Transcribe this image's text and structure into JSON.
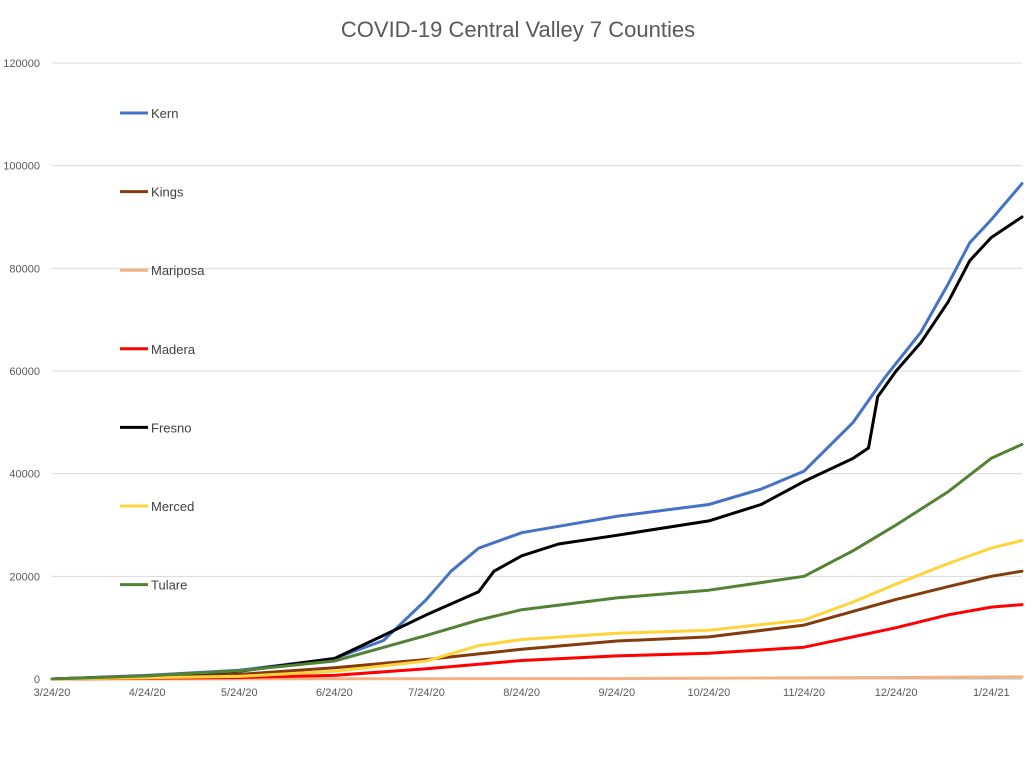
{
  "chart_data": {
    "type": "line",
    "title": "COVID-19 Central Valley 7 Counties",
    "xlabel": "",
    "ylabel": "",
    "ylim": [
      0,
      120000
    ],
    "y_ticks": [
      0,
      20000,
      40000,
      60000,
      80000,
      100000,
      120000
    ],
    "x_ticks": [
      "3/24/20",
      "4/24/20",
      "5/24/20",
      "6/24/20",
      "7/24/20",
      "8/24/20",
      "9/24/20",
      "10/24/20",
      "11/24/20",
      "12/24/20",
      "1/24/21"
    ],
    "x_range": [
      "2020-03-24",
      "2021-02-03"
    ],
    "grid": true,
    "legend_position": "left, inside plot",
    "series": [
      {
        "name": "Kern",
        "color": "#4472C4",
        "points": [
          [
            "2020-03-24",
            0
          ],
          [
            "2020-04-24",
            700
          ],
          [
            "2020-05-24",
            1700
          ],
          [
            "2020-06-24",
            4000
          ],
          [
            "2020-07-10",
            7500
          ],
          [
            "2020-07-24",
            15500
          ],
          [
            "2020-08-01",
            21000
          ],
          [
            "2020-08-10",
            25500
          ],
          [
            "2020-08-24",
            28500
          ],
          [
            "2020-09-24",
            31700
          ],
          [
            "2020-10-24",
            34000
          ],
          [
            "2020-11-10",
            37000
          ],
          [
            "2020-11-24",
            40500
          ],
          [
            "2020-12-10",
            50000
          ],
          [
            "2020-12-20",
            58500
          ],
          [
            "2020-12-24",
            61500
          ],
          [
            "2021-01-01",
            67500
          ],
          [
            "2021-01-10",
            77000
          ],
          [
            "2021-01-17",
            85000
          ],
          [
            "2021-01-24",
            89500
          ],
          [
            "2021-02-03",
            96500
          ]
        ]
      },
      {
        "name": "Kings",
        "color": "#843C0C",
        "points": [
          [
            "2020-03-24",
            0
          ],
          [
            "2020-04-24",
            350
          ],
          [
            "2020-05-24",
            900
          ],
          [
            "2020-06-24",
            2200
          ],
          [
            "2020-07-24",
            3800
          ],
          [
            "2020-08-24",
            5800
          ],
          [
            "2020-09-24",
            7400
          ],
          [
            "2020-10-24",
            8200
          ],
          [
            "2020-11-24",
            10500
          ],
          [
            "2020-12-24",
            15500
          ],
          [
            "2021-01-10",
            18000
          ],
          [
            "2021-01-24",
            20000
          ],
          [
            "2021-02-03",
            21000
          ]
        ]
      },
      {
        "name": "Mariposa",
        "color": "#F4B183",
        "points": [
          [
            "2020-03-24",
            0
          ],
          [
            "2020-06-24",
            40
          ],
          [
            "2020-09-24",
            80
          ],
          [
            "2020-12-24",
            300
          ],
          [
            "2021-02-03",
            400
          ]
        ]
      },
      {
        "name": "Madera",
        "color": "#FF0000",
        "points": [
          [
            "2020-03-24",
            0
          ],
          [
            "2020-05-24",
            300
          ],
          [
            "2020-06-24",
            700
          ],
          [
            "2020-07-24",
            2000
          ],
          [
            "2020-08-24",
            3600
          ],
          [
            "2020-09-24",
            4500
          ],
          [
            "2020-10-24",
            5000
          ],
          [
            "2020-11-24",
            6200
          ],
          [
            "2020-12-24",
            10000
          ],
          [
            "2021-01-10",
            12500
          ],
          [
            "2021-01-24",
            14000
          ],
          [
            "2021-02-03",
            14500
          ]
        ]
      },
      {
        "name": "Fresno",
        "color": "#000000",
        "points": [
          [
            "2020-03-24",
            0
          ],
          [
            "2020-04-24",
            600
          ],
          [
            "2020-05-24",
            1500
          ],
          [
            "2020-06-24",
            4000
          ],
          [
            "2020-07-10",
            8500
          ],
          [
            "2020-07-24",
            12500
          ],
          [
            "2020-08-10",
            17000
          ],
          [
            "2020-08-15",
            21000
          ],
          [
            "2020-08-24",
            24000
          ],
          [
            "2020-09-05",
            26300
          ],
          [
            "2020-09-24",
            28000
          ],
          [
            "2020-10-24",
            30800
          ],
          [
            "2020-11-10",
            34000
          ],
          [
            "2020-11-24",
            38500
          ],
          [
            "2020-12-10",
            43000
          ],
          [
            "2020-12-15",
            45000
          ],
          [
            "2020-12-18",
            55000
          ],
          [
            "2020-12-24",
            60000
          ],
          [
            "2021-01-01",
            65500
          ],
          [
            "2021-01-10",
            73500
          ],
          [
            "2021-01-17",
            81500
          ],
          [
            "2021-01-24",
            86000
          ],
          [
            "2021-02-03",
            90000
          ]
        ]
      },
      {
        "name": "Merced",
        "color": "#FFD43B",
        "points": [
          [
            "2020-03-24",
            0
          ],
          [
            "2020-05-24",
            500
          ],
          [
            "2020-06-24",
            1500
          ],
          [
            "2020-07-24",
            3500
          ],
          [
            "2020-08-10",
            6500
          ],
          [
            "2020-08-24",
            7700
          ],
          [
            "2020-09-24",
            8900
          ],
          [
            "2020-10-24",
            9500
          ],
          [
            "2020-11-24",
            11500
          ],
          [
            "2020-12-10",
            15000
          ],
          [
            "2020-12-24",
            18500
          ],
          [
            "2021-01-10",
            22500
          ],
          [
            "2021-01-24",
            25500
          ],
          [
            "2021-02-03",
            27000
          ]
        ]
      },
      {
        "name": "Tulare",
        "color": "#548235",
        "points": [
          [
            "2020-03-24",
            0
          ],
          [
            "2020-04-24",
            600
          ],
          [
            "2020-05-24",
            1600
          ],
          [
            "2020-06-24",
            3500
          ],
          [
            "2020-07-24",
            8500
          ],
          [
            "2020-08-10",
            11500
          ],
          [
            "2020-08-24",
            13500
          ],
          [
            "2020-09-24",
            15800
          ],
          [
            "2020-10-24",
            17300
          ],
          [
            "2020-11-24",
            20000
          ],
          [
            "2020-12-10",
            25000
          ],
          [
            "2020-12-24",
            30000
          ],
          [
            "2021-01-10",
            36500
          ],
          [
            "2021-01-24",
            43000
          ],
          [
            "2021-02-03",
            45700
          ]
        ]
      }
    ]
  }
}
